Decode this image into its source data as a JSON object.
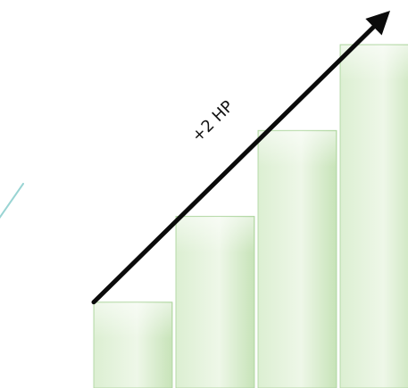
{
  "chart_data": {
    "type": "bar",
    "categories": [
      "",
      "",
      "",
      ""
    ],
    "values": [
      1,
      2,
      3,
      4
    ],
    "title": "",
    "xlabel": "",
    "ylabel": "",
    "ylim": [
      0,
      4.5
    ],
    "grid": false,
    "legend": "none",
    "annotation": "+2 HP",
    "colors": {
      "bar_light": "#f6fbf3",
      "bar_mid": "#dcefd2",
      "bar_dark": "#c7e3b8",
      "bar_edge": "#a9d39a",
      "arrow": "#0b0b0b",
      "faint_stroke": "#8fd0cf"
    }
  }
}
